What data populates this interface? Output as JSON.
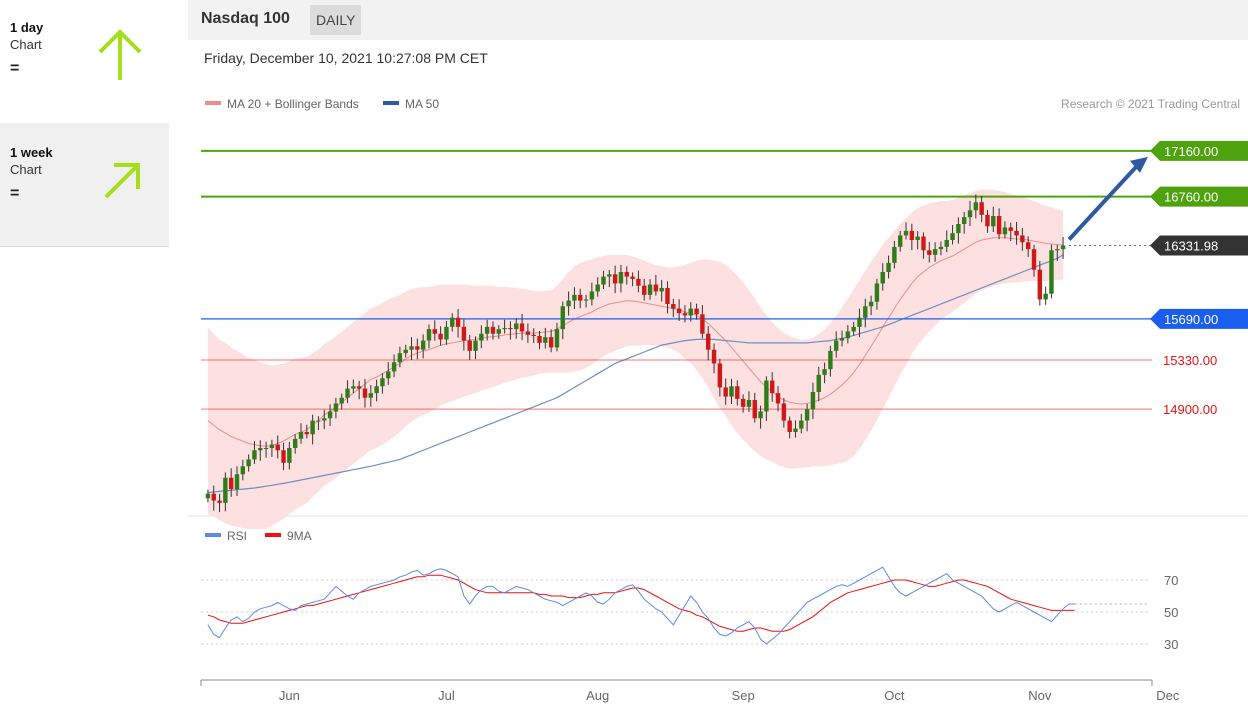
{
  "sidebar": {
    "cards": [
      {
        "period": "1 day",
        "sub": "Chart",
        "sign": "=",
        "arrow_color": "#a3e01a",
        "direction": "up"
      },
      {
        "period": "1 week",
        "sub": "Chart",
        "sign": "=",
        "arrow_color": "#a3e01a",
        "direction": "up-right"
      }
    ]
  },
  "header": {
    "instrument": "Nasdaq 100",
    "frequency": "DAILY",
    "timestamp": "Friday, December 10, 2021 10:27:08 PM CET"
  },
  "chart_data": {
    "type": "candlestick",
    "price_panel": {
      "ylim": [
        14000,
        17500
      ],
      "legend": [
        {
          "name": "MA 20 + Bollinger Bands",
          "color": "#f08c8c"
        },
        {
          "name": "MA 50",
          "color": "#2d5aa0"
        }
      ],
      "credit": "Research © 2021 Trading Central",
      "levels": [
        {
          "value": 17160,
          "label": "17160.00",
          "kind": "resistance-target",
          "color": "#4ea20e",
          "tag": true
        },
        {
          "value": 16760,
          "label": "16760.00",
          "kind": "resistance",
          "color": "#4ea20e",
          "tag": true
        },
        {
          "value": 16331.98,
          "label": "16331.98",
          "kind": "last-price",
          "color": "#333333",
          "tag": true,
          "dotted": true
        },
        {
          "value": 15690,
          "label": "15690.00",
          "kind": "pivot",
          "color": "#1a5ef0",
          "tag": true
        },
        {
          "value": 15330,
          "label": "15330.00",
          "kind": "support",
          "color": "#ee1111",
          "tag": false
        },
        {
          "value": 14900,
          "label": "14900.00",
          "kind": "support",
          "color": "#ee1111",
          "tag": false
        }
      ],
      "target_arrow": {
        "from": 16331.98,
        "to": 17160,
        "color": "#2d5aa0"
      },
      "candle_up_color": "#2e7d1a",
      "candle_down_color": "#d01818",
      "closes": [
        14160,
        14100,
        14080,
        14300,
        14200,
        14330,
        14400,
        14460,
        14540,
        14560,
        14560,
        14590,
        14540,
        14430,
        14560,
        14640,
        14700,
        14680,
        14800,
        14800,
        14820,
        14880,
        14950,
        15000,
        15080,
        15100,
        15080,
        15000,
        15040,
        15100,
        15170,
        15230,
        15310,
        15390,
        15420,
        15450,
        15420,
        15500,
        15600,
        15560,
        15510,
        15620,
        15700,
        15620,
        15500,
        15410,
        15500,
        15560,
        15620,
        15560,
        15600,
        15610,
        15600,
        15650,
        15580,
        15550,
        15540,
        15480,
        15530,
        15440,
        15600,
        15800,
        15850,
        15900,
        15850,
        15860,
        15930,
        15990,
        16060,
        16080,
        16000,
        16100,
        16060,
        16040,
        15980,
        15900,
        15990,
        15930,
        15960,
        15820,
        15780,
        15740,
        15720,
        15780,
        15730,
        15560,
        15420,
        15300,
        15090,
        15010,
        15100,
        14990,
        14920,
        14980,
        14820,
        14880,
        15150,
        15040,
        14950,
        14800,
        14700,
        14730,
        14800,
        14900,
        15050,
        15200,
        15250,
        15410,
        15500,
        15520,
        15580,
        15620,
        15700,
        15800,
        15840,
        16000,
        16100,
        16180,
        16320,
        16420,
        16460,
        16380,
        16410,
        16290,
        16250,
        16300,
        16320,
        16380,
        16440,
        16520,
        16580,
        16640,
        16710,
        16600,
        16500,
        16590,
        16430,
        16490,
        16460,
        16420,
        16360,
        16300,
        16120,
        15860,
        15910,
        16290,
        16300,
        16331.98
      ],
      "ma20": [
        14800,
        14760,
        14720,
        14690,
        14660,
        14640,
        14620,
        14600,
        14590,
        14580,
        14575,
        14580,
        14600,
        14620,
        14650,
        14680,
        14700,
        14720,
        14760,
        14800,
        14850,
        14880,
        14920,
        14960,
        15000,
        15040,
        15080,
        15120,
        15160,
        15180,
        15210,
        15240,
        15270,
        15300,
        15340,
        15370,
        15390,
        15410,
        15420,
        15440,
        15460,
        15470,
        15480,
        15490,
        15500,
        15505,
        15510,
        15520,
        15530,
        15535,
        15540,
        15550,
        15555,
        15560,
        15565,
        15565,
        15565,
        15570,
        15575,
        15580,
        15600,
        15630,
        15660,
        15690,
        15710,
        15730,
        15750,
        15780,
        15800,
        15820,
        15830,
        15840,
        15850,
        15845,
        15840,
        15830,
        15820,
        15810,
        15800,
        15790,
        15780,
        15770,
        15750,
        15740,
        15720,
        15690,
        15650,
        15600,
        15550,
        15500,
        15440,
        15380,
        15320,
        15260,
        15200,
        15140,
        15090,
        15050,
        15010,
        14980,
        14960,
        14950,
        14945,
        14950,
        14960,
        14980,
        15000,
        15030,
        15070,
        15110,
        15160,
        15220,
        15290,
        15370,
        15450,
        15530,
        15620,
        15700,
        15780,
        15860,
        15930,
        16000,
        16060,
        16100,
        16140,
        16170,
        16200,
        16220,
        16240,
        16270,
        16300,
        16330,
        16360,
        16380,
        16390,
        16400,
        16400,
        16400,
        16395,
        16390,
        16385,
        16380,
        16370,
        16360,
        16350,
        16345,
        16340,
        16335
      ],
      "bb_width": [
        820,
        800,
        790,
        790,
        780,
        770,
        760,
        750,
        740,
        730,
        720,
        700,
        690,
        680,
        670,
        660,
        650,
        640,
        630,
        620,
        620,
        620,
        620,
        620,
        620,
        620,
        620,
        620,
        620,
        620,
        620,
        620,
        610,
        600,
        590,
        580,
        570,
        560,
        550,
        540,
        530,
        520,
        510,
        500,
        490,
        480,
        470,
        460,
        450,
        440,
        430,
        420,
        410,
        400,
        390,
        380,
        370,
        360,
        360,
        360,
        380,
        410,
        440,
        460,
        470,
        470,
        460,
        450,
        440,
        430,
        420,
        410,
        400,
        390,
        380,
        370,
        360,
        350,
        350,
        350,
        360,
        380,
        410,
        440,
        480,
        520,
        560,
        600,
        640,
        660,
        680,
        690,
        690,
        680,
        670,
        650,
        630,
        610,
        600,
        590,
        580,
        570,
        560,
        560,
        560,
        580,
        600,
        620,
        650,
        680,
        710,
        730,
        740,
        740,
        740,
        730,
        720,
        700,
        680,
        660,
        640,
        620,
        600,
        580,
        560,
        540,
        520,
        500,
        490,
        480,
        470,
        460,
        450,
        440,
        430,
        420,
        410,
        400,
        390,
        380,
        370,
        360,
        350,
        340,
        330,
        320,
        310,
        300
      ],
      "ma50": [
        14170,
        14175,
        14180,
        14185,
        14190,
        14195,
        14200,
        14205,
        14210,
        14218,
        14226,
        14234,
        14242,
        14250,
        14260,
        14270,
        14280,
        14290,
        14300,
        14310,
        14320,
        14330,
        14340,
        14350,
        14360,
        14370,
        14380,
        14390,
        14400,
        14412,
        14424,
        14436,
        14448,
        14460,
        14480,
        14500,
        14520,
        14540,
        14560,
        14580,
        14600,
        14620,
        14640,
        14660,
        14680,
        14700,
        14720,
        14740,
        14760,
        14780,
        14800,
        14820,
        14840,
        14860,
        14880,
        14900,
        14920,
        14940,
        14960,
        14980,
        15000,
        15030,
        15060,
        15090,
        15120,
        15150,
        15180,
        15210,
        15240,
        15270,
        15300,
        15320,
        15340,
        15360,
        15380,
        15400,
        15420,
        15440,
        15460,
        15470,
        15480,
        15490,
        15500,
        15505,
        15510,
        15510,
        15510,
        15510,
        15505,
        15500,
        15495,
        15490,
        15485,
        15480,
        15480,
        15480,
        15480,
        15480,
        15480,
        15480,
        15480,
        15480,
        15480,
        15480,
        15485,
        15490,
        15495,
        15500,
        15510,
        15520,
        15530,
        15545,
        15560,
        15575,
        15590,
        15605,
        15620,
        15640,
        15660,
        15680,
        15700,
        15720,
        15740,
        15760,
        15780,
        15800,
        15820,
        15840,
        15860,
        15880,
        15900,
        15920,
        15940,
        15960,
        15980,
        16000,
        16020,
        16040,
        16060,
        16080,
        16100,
        16120,
        16140,
        16160,
        16180,
        16200,
        16220,
        16250
      ]
    },
    "rsi_panel": {
      "ylim": [
        15,
        90
      ],
      "legend": [
        {
          "name": "RSI",
          "color": "#5b8ce0"
        },
        {
          "name": "9MA",
          "color": "#ee1111"
        }
      ],
      "ticks": [
        30,
        50,
        70
      ],
      "last_value": 55,
      "rsi": [
        42,
        36,
        34,
        40,
        45,
        47,
        44,
        46,
        50,
        52,
        53,
        54,
        56,
        54,
        52,
        51,
        54,
        55,
        56,
        57,
        58,
        62,
        66,
        63,
        60,
        58,
        62,
        64,
        66,
        67,
        68,
        69,
        70,
        72,
        73,
        75,
        76,
        73,
        74,
        76,
        77,
        76,
        74,
        72,
        60,
        55,
        60,
        64,
        66,
        66,
        63,
        62,
        64,
        66,
        65,
        64,
        62,
        60,
        58,
        57,
        56,
        54,
        56,
        58,
        60,
        62,
        60,
        56,
        55,
        58,
        62,
        64,
        66,
        67,
        63,
        58,
        55,
        52,
        50,
        46,
        42,
        48,
        54,
        60,
        56,
        50,
        46,
        40,
        36,
        35,
        37,
        40,
        42,
        44,
        40,
        33,
        30,
        33,
        36,
        40,
        44,
        48,
        52,
        56,
        58,
        60,
        62,
        64,
        66,
        67,
        66,
        68,
        70,
        72,
        74,
        76,
        78,
        72,
        66,
        62,
        60,
        62,
        64,
        66,
        68,
        70,
        72,
        74,
        70,
        68,
        66,
        64,
        62,
        60,
        56,
        52,
        50,
        52,
        54,
        56,
        54,
        52,
        50,
        48,
        46,
        44,
        48,
        52,
        55,
        55
      ],
      "ma9": [
        48,
        47,
        45,
        44,
        43,
        43,
        43,
        44,
        45,
        46,
        47,
        48,
        49,
        50,
        51,
        52,
        53,
        54,
        54,
        55,
        56,
        57,
        58,
        59,
        60,
        61,
        62,
        63,
        64,
        65,
        66,
        67,
        68,
        69,
        70,
        71,
        72,
        72,
        73,
        73,
        73,
        72,
        71,
        70,
        68,
        66,
        64,
        63,
        62,
        62,
        62,
        62,
        62,
        62,
        62,
        62,
        62,
        61,
        61,
        60,
        60,
        60,
        59,
        59,
        59,
        60,
        61,
        61,
        62,
        62,
        62,
        63,
        64,
        65,
        65,
        64,
        62,
        60,
        58,
        56,
        54,
        52,
        51,
        50,
        48,
        47,
        45,
        43,
        41,
        40,
        39,
        38,
        38,
        39,
        40,
        40,
        39,
        38,
        38,
        38,
        39,
        41,
        43,
        45,
        47,
        50,
        53,
        56,
        58,
        60,
        62,
        63,
        64,
        65,
        66,
        67,
        68,
        69,
        70,
        70,
        70,
        69,
        68,
        67,
        66,
        66,
        67,
        68,
        69,
        70,
        70,
        69,
        68,
        67,
        66,
        64,
        62,
        60,
        58,
        57,
        56,
        55,
        54,
        53,
        52,
        51,
        51,
        51,
        51,
        51
      ]
    },
    "x_axis": {
      "labels": [
        "Jun",
        "Jul",
        "Aug",
        "Sep",
        "Oct",
        "Nov",
        "Dec"
      ],
      "label_bar_index": [
        14,
        41,
        67,
        92,
        118,
        143,
        165
      ]
    }
  }
}
